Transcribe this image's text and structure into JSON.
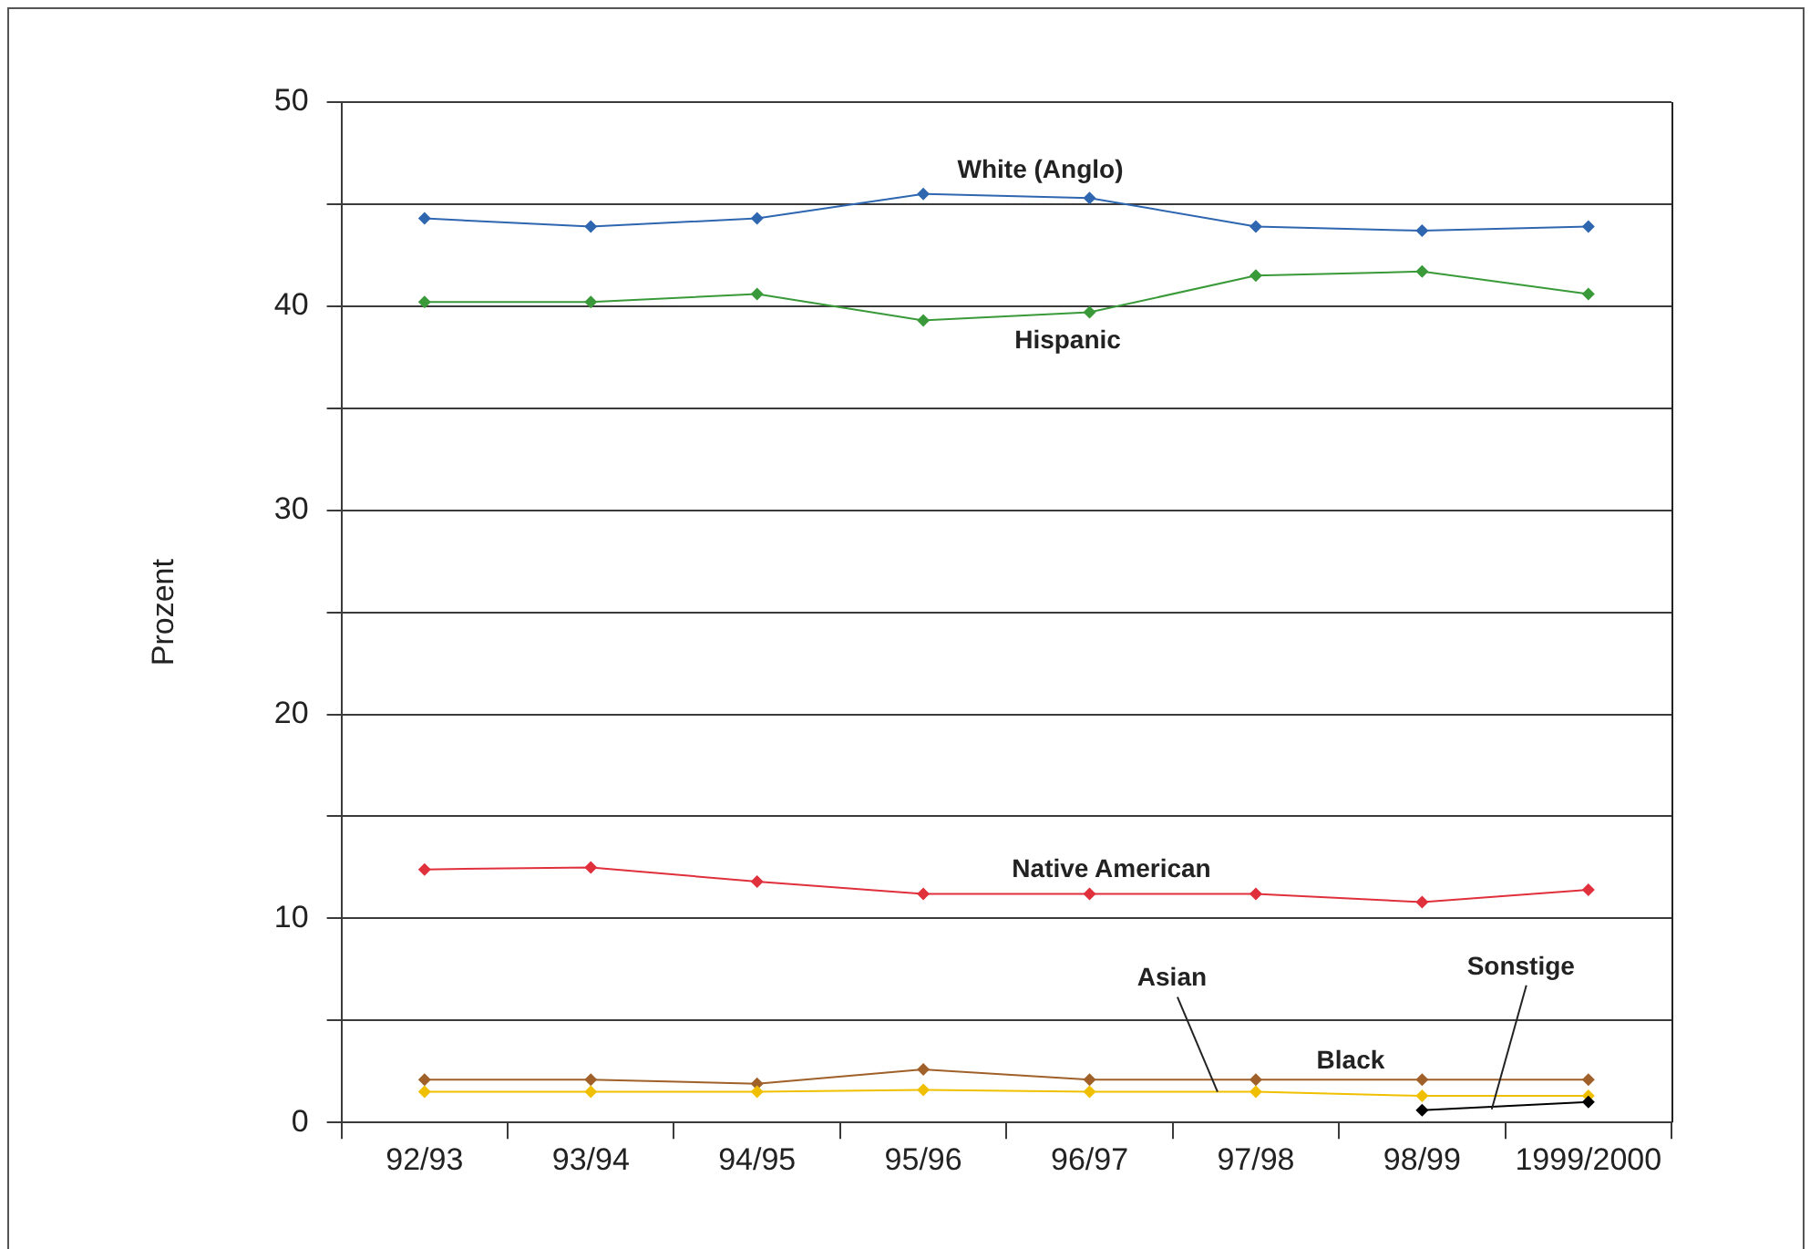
{
  "chart_data": {
    "type": "line",
    "ylabel": "Prozent",
    "categories": [
      "92/93",
      "93/94",
      "94/95",
      "95/96",
      "96/97",
      "97/98",
      "98/99",
      "1999/2000"
    ],
    "series": [
      {
        "name": "White (Anglo)",
        "color": "#2e66b0",
        "values": [
          44.3,
          43.9,
          44.3,
          45.5,
          45.3,
          43.9,
          43.7,
          43.9
        ]
      },
      {
        "name": "Hispanic",
        "color": "#3a9a3a",
        "values": [
          40.2,
          40.2,
          40.6,
          39.3,
          39.7,
          41.5,
          41.7,
          40.6
        ]
      },
      {
        "name": "Native American",
        "color": "#e0303c",
        "values": [
          12.4,
          12.5,
          11.8,
          11.2,
          11.2,
          11.2,
          10.8,
          11.4
        ]
      },
      {
        "name": "Black",
        "color": "#a0602a",
        "values": [
          2.1,
          2.1,
          1.9,
          2.6,
          2.1,
          2.1,
          2.1,
          2.1
        ]
      },
      {
        "name": "Asian",
        "color": "#f0c000",
        "values": [
          1.5,
          1.5,
          1.5,
          1.6,
          1.5,
          1.5,
          1.3,
          1.3
        ]
      },
      {
        "name": "Sonstige",
        "color": "#000000",
        "values": [
          null,
          null,
          null,
          null,
          null,
          null,
          0.6,
          1.0
        ]
      }
    ],
    "ylim": [
      0,
      50
    ],
    "yticks": [
      0,
      {
        "value": 5,
        "label": null
      },
      10,
      {
        "value": 15,
        "label": null
      },
      20,
      {
        "value": 25,
        "label": null
      },
      30,
      {
        "value": 35,
        "label": null
      },
      40,
      {
        "value": 45,
        "label": null
      },
      50
    ],
    "grid": "y",
    "marker": "diamond",
    "line_style": "solid",
    "legend": false
  }
}
